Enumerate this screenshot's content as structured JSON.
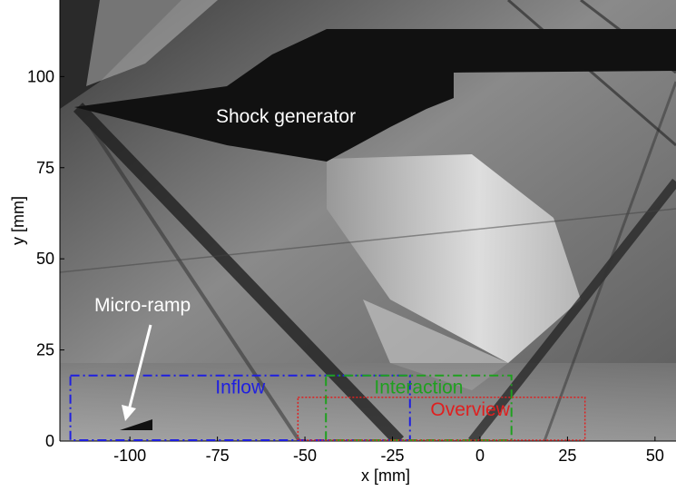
{
  "figure": {
    "xlabel": "x [mm]",
    "ylabel": "y [mm]",
    "x_ticks": [
      "-100",
      "-75",
      "-50",
      "-25",
      "0",
      "25",
      "50"
    ],
    "y_ticks": [
      "0",
      "25",
      "50",
      "75",
      "100"
    ],
    "xlim": [
      -120,
      56
    ],
    "ylim": [
      0,
      121
    ],
    "annotations": {
      "shock_generator": "Shock generator",
      "micro_ramp": "Micro-ramp"
    },
    "regions": [
      {
        "label": "Inflow",
        "color": "#1f1fe0",
        "style": "dash-dot",
        "x": [
          -117,
          -20
        ],
        "y": [
          0,
          18
        ]
      },
      {
        "label": "Interaction",
        "color": "#1fa01f",
        "style": "dash-dot",
        "x": [
          -44,
          9
        ],
        "y": [
          0,
          18
        ]
      },
      {
        "label": "Overview",
        "color": "#e01f1f",
        "style": "dotted",
        "x": [
          -52,
          30
        ],
        "y": [
          0,
          12
        ]
      }
    ]
  }
}
